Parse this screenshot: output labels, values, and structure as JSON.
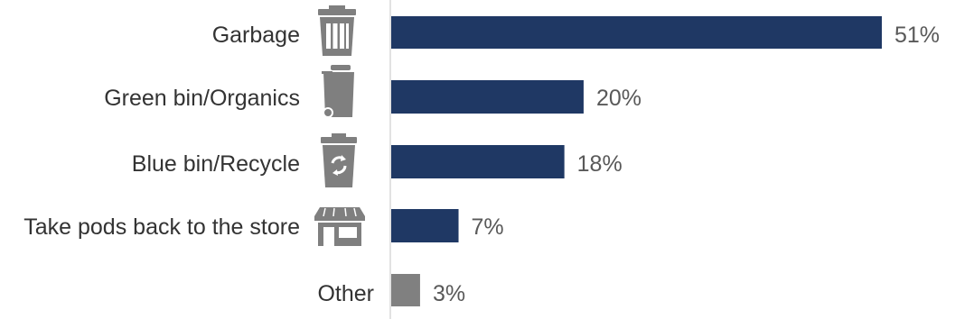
{
  "chart_data": {
    "type": "bar",
    "orientation": "horizontal",
    "categories": [
      "Garbage",
      "Green bin/Organics",
      "Blue bin/Recycle",
      "Take pods back to the store",
      "Other"
    ],
    "values": [
      51,
      20,
      18,
      7,
      3
    ],
    "value_labels": [
      "51%",
      "20%",
      "18%",
      "7%",
      "3%"
    ],
    "icons": [
      "trash-can-icon",
      "green-bin-icon",
      "recycle-bin-icon",
      "store-icon",
      null
    ],
    "bar_colors": [
      "#1f3864",
      "#1f3864",
      "#1f3864",
      "#1f3864",
      "#808080"
    ],
    "xlim": [
      0,
      51
    ],
    "title": "",
    "xlabel": "",
    "ylabel": "",
    "grid": false,
    "legend": false
  },
  "colors": {
    "bar_primary": "#1f3864",
    "bar_other": "#808080",
    "icon": "#7f7f7f",
    "axis": "#d9d9d9"
  }
}
